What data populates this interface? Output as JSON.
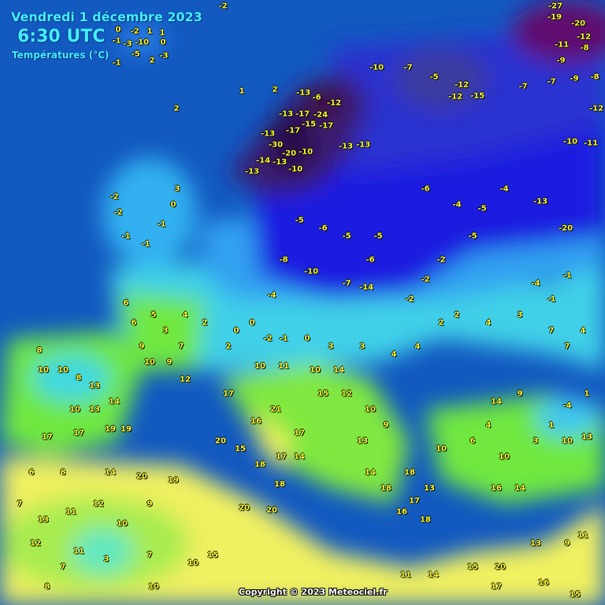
{
  "header": {
    "date": "Vendredi 1 décembre 2023",
    "time": "6:30 UTC",
    "variable": "Températures (°C)"
  },
  "copyright": "Copyright © 2023 Meteociel.fr",
  "colors": {
    "sea": "#1259c0",
    "very_cold": "#2a0a4a",
    "cold": "#1e1ee0",
    "cool": "#30a8f0",
    "mild": "#40e0d0",
    "warm": "#70e840",
    "hot": "#f0f060"
  },
  "stations": [
    "0",
    "-2",
    "1",
    "1",
    "-1",
    "-3",
    "-10",
    "0",
    "-1",
    "-5",
    "2",
    "-3",
    "-2",
    "1",
    "2",
    "2",
    "-13",
    "-6",
    "-24",
    "-12",
    "-13",
    "-17",
    "-17",
    "-15",
    "-17",
    "-13",
    "-30",
    "-20",
    "-10",
    "-14",
    "-13",
    "-10",
    "-13",
    "-13",
    "-13",
    "-10",
    "-7",
    "-5",
    "-12",
    "-15",
    "-12",
    "-7",
    "-7",
    "-9",
    "-8",
    "-27",
    "-19",
    "-20",
    "-12",
    "-11",
    "-8",
    "-9",
    "-12",
    "-10",
    "-11",
    "-13",
    "-20",
    "-6",
    "-4",
    "-5",
    "-4",
    "-5",
    "-2",
    "-2",
    "-2",
    "-6",
    "-14",
    "-7",
    "-10",
    "-8",
    "-4",
    "-5",
    "-5",
    "-6",
    "-5",
    "-2",
    "-2",
    "-1",
    "-1",
    "-1",
    "0",
    "3",
    "6",
    "6",
    "5",
    "3",
    "7",
    "4",
    "2",
    "9",
    "10",
    "9",
    "12",
    "8",
    "10",
    "10",
    "8",
    "13",
    "10",
    "13",
    "14",
    "19",
    "19",
    "17",
    "17",
    "17",
    "16",
    "21",
    "17",
    "17",
    "14",
    "18",
    "18",
    "15",
    "20",
    "0",
    "0",
    "-2",
    "-1",
    "0",
    "3",
    "3",
    "4",
    "4",
    "2",
    "10",
    "11",
    "10",
    "14",
    "15",
    "12",
    "10",
    "9",
    "13",
    "14",
    "18",
    "18",
    "13",
    "16",
    "18",
    "17",
    "10",
    "6",
    "4",
    "10",
    "14",
    "9",
    "3",
    "1",
    "10",
    "13",
    "1",
    "-4",
    "16",
    "14",
    "2",
    "2",
    "4",
    "3",
    "7",
    "7",
    "4",
    "-1",
    "-4",
    "-1",
    "6",
    "8",
    "14",
    "20",
    "19",
    "7",
    "13",
    "11",
    "12",
    "10",
    "9",
    "12",
    "11",
    "3",
    "7",
    "10",
    "10",
    "8",
    "7",
    "15",
    "20",
    "20",
    "15",
    "20",
    "17",
    "16",
    "15",
    "14",
    "11",
    "13",
    "9",
    "11"
  ]
}
